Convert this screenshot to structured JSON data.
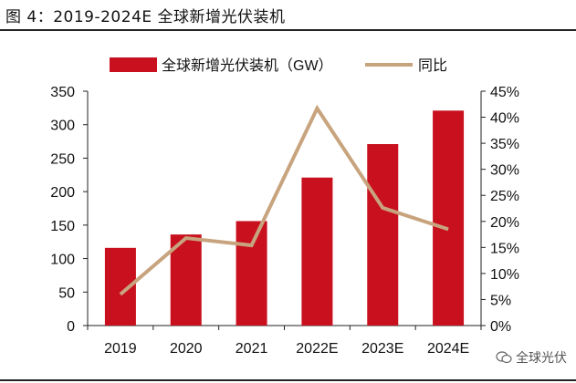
{
  "figure_title": "图 4：2019-2024E 全球新增光伏装机",
  "watermark": "全球光伏",
  "colors": {
    "bar": "#C8101E",
    "line": "#C8A47E",
    "axis": "#222222"
  },
  "chart_data": {
    "type": "bar",
    "categories": [
      "2019",
      "2020",
      "2021",
      "2022E",
      "2023E",
      "2024E"
    ],
    "series": [
      {
        "name": "全球新增光伏装机（GW）",
        "type": "bar",
        "axis": "left",
        "values": [
          116,
          136,
          156,
          221,
          271,
          321
        ]
      },
      {
        "name": "同比",
        "type": "line",
        "axis": "right",
        "values": [
          6.0,
          16.8,
          15.4,
          41.7,
          22.6,
          18.5
        ]
      }
    ],
    "ylim_left": [
      0,
      350
    ],
    "yticks_left": [
      "0",
      "50",
      "100",
      "150",
      "200",
      "250",
      "300",
      "350"
    ],
    "ylim_right": [
      0,
      45
    ],
    "yticks_right": [
      "0%",
      "5%",
      "10%",
      "15%",
      "20%",
      "25%",
      "30%",
      "35%",
      "40%",
      "45%"
    ],
    "legend_position": "top",
    "grid": false
  }
}
